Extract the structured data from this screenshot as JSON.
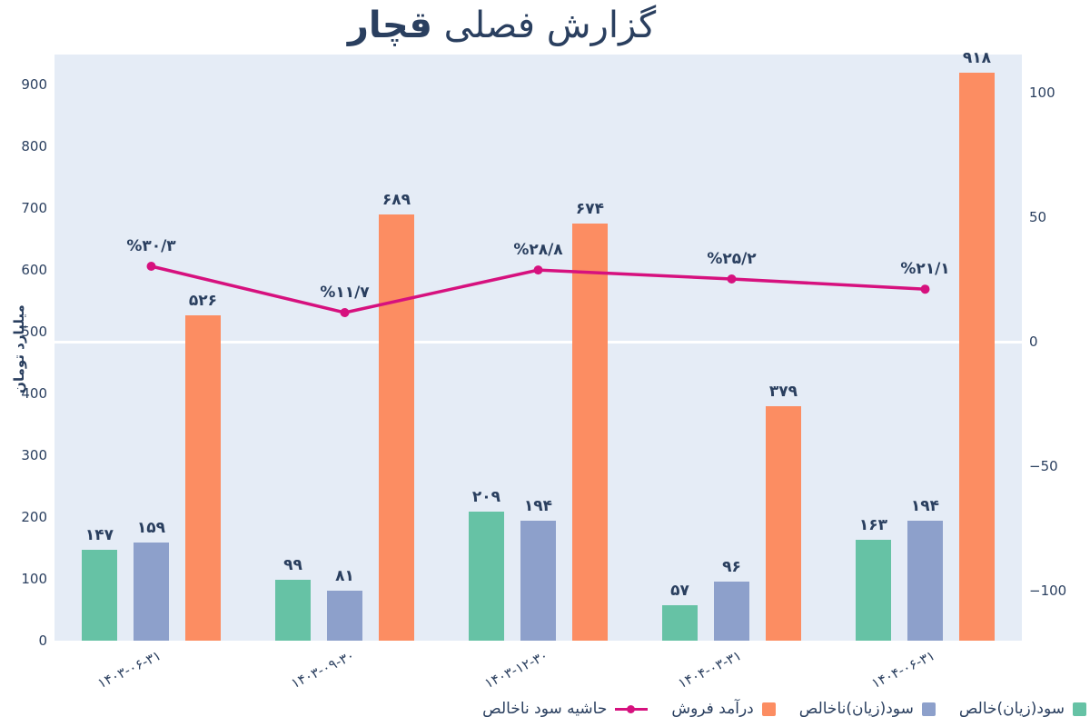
{
  "title": {
    "prefix": "گزارش فصلی",
    "bold": "قچار"
  },
  "colors": {
    "title_text": "#2a3f5f",
    "plot_background": "#e5ecf6",
    "page_background": "#ffffff",
    "zero_line": "#ffffff",
    "net_profit_bar": "#66c2a5",
    "gross_profit_bar": "#8da0cb",
    "revenue_bar": "#fc8d62",
    "margin_line": "#d6117e"
  },
  "chart_data": {
    "type": "bar",
    "title": "گزارش فصلی قچار",
    "categories": [
      "۱۴۰۳-۰۶-۳۱",
      "۱۴۰۳-۰۹-۳۰",
      "۱۴۰۳-۱۲-۳۰",
      "۱۴۰۴-۰۳-۳۱",
      "۱۴۰۴-۰۶-۳۱"
    ],
    "series": [
      {
        "id": "net-profit",
        "name": "سود(زیان)خالص",
        "color": "#66c2a5",
        "axis": "left",
        "values": [
          147,
          99,
          209,
          57,
          163
        ],
        "value_labels": [
          "۱۴۷",
          "۹۹",
          "۲۰۹",
          "۵۷",
          "۱۶۳"
        ]
      },
      {
        "id": "gross-profit",
        "name": "سود(زیان)ناخالص",
        "color": "#8da0cb",
        "axis": "left",
        "values": [
          159,
          81,
          194,
          96,
          194
        ],
        "value_labels": [
          "۱۵۹",
          "۸۱",
          "۱۹۴",
          "۹۶",
          "۱۹۴"
        ]
      },
      {
        "id": "revenue",
        "name": "درآمد فروش",
        "color": "#fc8d62",
        "axis": "left",
        "values": [
          526,
          689,
          674,
          379,
          918
        ],
        "value_labels": [
          "۵۲۶",
          "۶۸۹",
          "۶۷۴",
          "۳۷۹",
          "۹۱۸"
        ]
      }
    ],
    "line_series": {
      "id": "gross-margin",
      "name": "حاشیه سود ناخالص",
      "color": "#d6117e",
      "axis": "right",
      "values": [
        30.3,
        11.7,
        28.8,
        25.2,
        21.1
      ],
      "value_labels": [
        "%۳۰/۳",
        "%۱۱/۷",
        "%۲۸/۸",
        "%۲۵/۲",
        "%۲۱/۱"
      ]
    },
    "left_axis": {
      "title": "میلیارد تومان",
      "range": [
        0,
        948
      ],
      "ticks": [
        {
          "v": 0,
          "label": "0"
        },
        {
          "v": 100,
          "label": "100"
        },
        {
          "v": 200,
          "label": "200"
        },
        {
          "v": 300,
          "label": "300"
        },
        {
          "v": 400,
          "label": "400"
        },
        {
          "v": 500,
          "label": "500"
        },
        {
          "v": 600,
          "label": "600"
        },
        {
          "v": 700,
          "label": "700"
        },
        {
          "v": 800,
          "label": "800"
        },
        {
          "v": 900,
          "label": "900"
        }
      ]
    },
    "right_axis": {
      "range": [
        -120,
        115.3
      ],
      "ticks": [
        {
          "v": 100,
          "label": "100"
        },
        {
          "v": 50,
          "label": "50"
        },
        {
          "v": 0,
          "label": "0"
        },
        {
          "v": -50,
          "label": "−50"
        },
        {
          "v": -100,
          "label": "−100"
        }
      ]
    },
    "grid": "horizontal-zero-line-only",
    "legend_position": "bottom-right",
    "legend": [
      {
        "label": "حاشیه سود ناخالص",
        "type": "line",
        "color": "#d6117e"
      },
      {
        "label": "درآمد فروش",
        "type": "square",
        "color": "#fc8d62"
      },
      {
        "label": "سود(زیان)ناخالص",
        "type": "square",
        "color": "#8da0cb"
      },
      {
        "label": "سود(زیان)خالص",
        "type": "square",
        "color": "#66c2a5"
      }
    ]
  }
}
